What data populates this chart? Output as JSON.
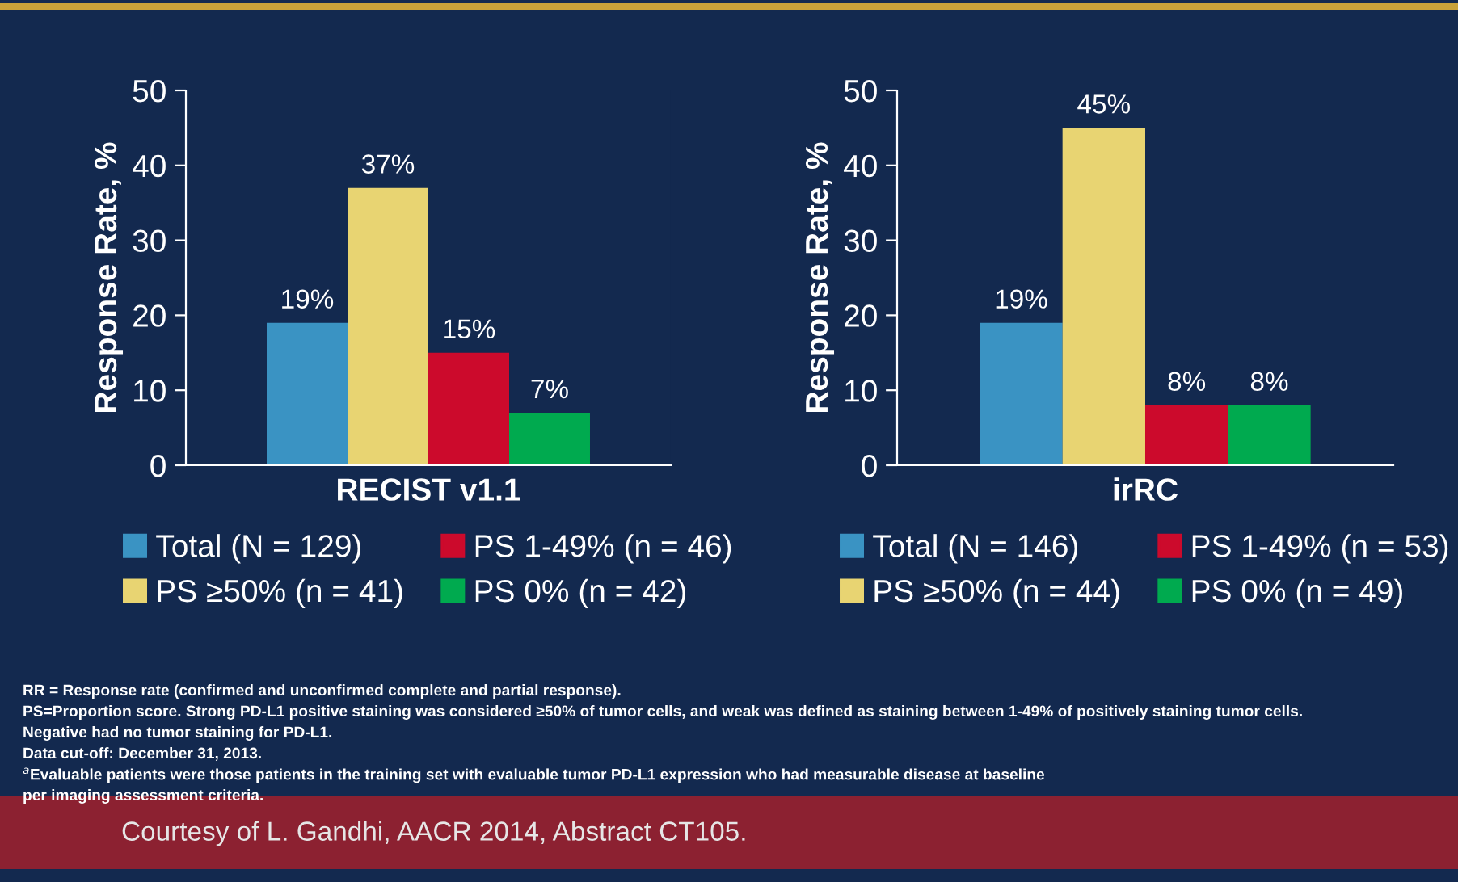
{
  "chart_data": [
    {
      "type": "bar",
      "categories": [
        null
      ],
      "xlabel": "RECIST v1.1",
      "ylabel": "Response Rate, %",
      "ylim": [
        0,
        50
      ],
      "yticks": [
        0,
        10,
        20,
        30,
        40,
        50
      ],
      "grid": false,
      "legend": "bottom",
      "series": [
        {
          "name": "Total (N = 129)",
          "color": "#3a93c3",
          "values": [
            19
          ],
          "value_labels": [
            "19%"
          ]
        },
        {
          "name": "PS ≥50% (n = 41)",
          "color": "#e8d472",
          "values": [
            37
          ],
          "value_labels": [
            "37%"
          ]
        },
        {
          "name": "PS 1-49% (n = 46)",
          "color": "#cc0a2c",
          "values": [
            15
          ],
          "value_labels": [
            "15%"
          ]
        },
        {
          "name": "PS 0% (n = 42)",
          "color": "#00aa4f",
          "values": [
            7
          ],
          "value_labels": [
            "7%"
          ]
        }
      ],
      "annotations": [
        "RR = Response rate (confirmed and unconfirmed complete and partial response).",
        "PS=Proportion score. Strong PD-L1 positive staining was considered ≥50% of tumor cells, and weak was defined as staining between 1-49% of positively staining tumor cells.",
        "Negative had no tumor staining for PD-L1.",
        "Data cut-off: December 31, 2013.",
        "$^{a}$Evaluable patients were those patients in the training set with evaluable tumor PD-L1 expression who had measurable disease at baseline",
        "per imaging assessment criteria.",
        "Courtesy of L. Gandhi, AACR 2014, Abstract CT105."
      ]
    },
    {
      "type": "bar",
      "categories": [
        null
      ],
      "xlabel": "irRC",
      "ylabel": "Response Rate, %",
      "ylim": [
        0,
        50
      ],
      "yticks": [
        0,
        10,
        20,
        30,
        40,
        50
      ],
      "grid": false,
      "legend": "bottom",
      "series": [
        {
          "name": "Total (N = 146)",
          "color": "#3a93c3",
          "values": [
            19
          ],
          "value_labels": [
            "19%"
          ]
        },
        {
          "name": "PS ≥50% (n = 44)",
          "color": "#e8d472",
          "values": [
            45
          ],
          "value_labels": [
            "45%"
          ]
        },
        {
          "name": "PS 1-49% (n = 53)",
          "color": "#cc0a2c",
          "values": [
            8
          ],
          "value_labels": [
            "8%"
          ]
        },
        {
          "name": "PS 0% (n = 49)",
          "color": "#00aa4f",
          "values": [
            8
          ],
          "value_labels": [
            "8%"
          ]
        }
      ]
    }
  ]
}
